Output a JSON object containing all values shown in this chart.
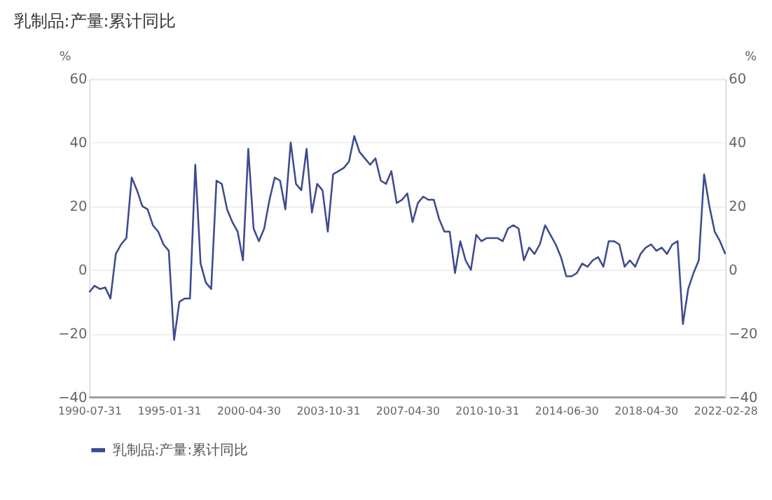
{
  "chart_data": {
    "type": "line",
    "title": "乳制品:产量:累计同比",
    "categories": [
      "1990-07-31",
      null,
      null,
      null,
      null,
      null,
      null,
      null,
      null,
      null,
      null,
      null,
      null,
      null,
      null,
      "1995-01-31",
      null,
      null,
      null,
      null,
      null,
      null,
      null,
      null,
      null,
      null,
      null,
      null,
      null,
      null,
      "2000-04-30",
      null,
      null,
      null,
      null,
      null,
      null,
      null,
      null,
      null,
      null,
      null,
      null,
      null,
      null,
      "2003-10-31",
      null,
      null,
      null,
      null,
      null,
      null,
      null,
      null,
      null,
      null,
      null,
      null,
      null,
      null,
      "2007-04-30",
      null,
      null,
      null,
      null,
      null,
      null,
      null,
      null,
      null,
      null,
      null,
      null,
      null,
      null,
      "2010-10-31",
      null,
      null,
      null,
      null,
      null,
      null,
      null,
      null,
      null,
      null,
      null,
      null,
      null,
      null,
      "2014-06-30",
      null,
      null,
      null,
      null,
      null,
      null,
      null,
      null,
      null,
      null,
      null,
      null,
      null,
      null,
      "2018-04-30",
      null,
      null,
      null,
      null,
      null,
      null,
      null,
      null,
      null,
      null,
      null,
      null,
      null,
      null,
      "2022-02-28"
    ],
    "series": [
      {
        "name": "乳制品:产量:累计同比",
        "color": "#3d4b8f",
        "values": [
          -7,
          -5,
          -6,
          -5.5,
          -9,
          5,
          8,
          10,
          29,
          25,
          20,
          19,
          14,
          12,
          8,
          6,
          -22,
          -10,
          -9,
          -9,
          33,
          2,
          -4,
          -6,
          28,
          27,
          19,
          15,
          12,
          3,
          38,
          13,
          9,
          13,
          22,
          29,
          28,
          19,
          40,
          27,
          25,
          38,
          18,
          27,
          25,
          12,
          30,
          31,
          32,
          34,
          42,
          37,
          35,
          33,
          35,
          28,
          27,
          31,
          21,
          22,
          24,
          15,
          21,
          23,
          22,
          22,
          16,
          12,
          12,
          -1,
          9,
          3,
          0,
          11,
          9,
          10,
          10,
          10,
          9,
          13,
          14,
          13,
          3,
          7,
          5,
          8,
          14,
          11,
          8,
          4,
          -2,
          -2,
          -1,
          2,
          1,
          3,
          4,
          1,
          9,
          9,
          8,
          1,
          3,
          1,
          5,
          7,
          8,
          6,
          7,
          5,
          8,
          9,
          -17,
          -6,
          -1,
          3,
          30,
          20,
          12,
          9,
          5
        ]
      }
    ],
    "ylabel": "%",
    "y2label": "%",
    "ylim": [
      -40,
      60
    ],
    "yticks": [
      -40,
      -20,
      0,
      20,
      40,
      60
    ],
    "y2lim": [
      -40,
      60
    ],
    "y2ticks": [
      -40,
      -20,
      0,
      20,
      40,
      60
    ],
    "grid": "y",
    "legend": "bottom",
    "line_style": "solid",
    "marker": "none"
  }
}
